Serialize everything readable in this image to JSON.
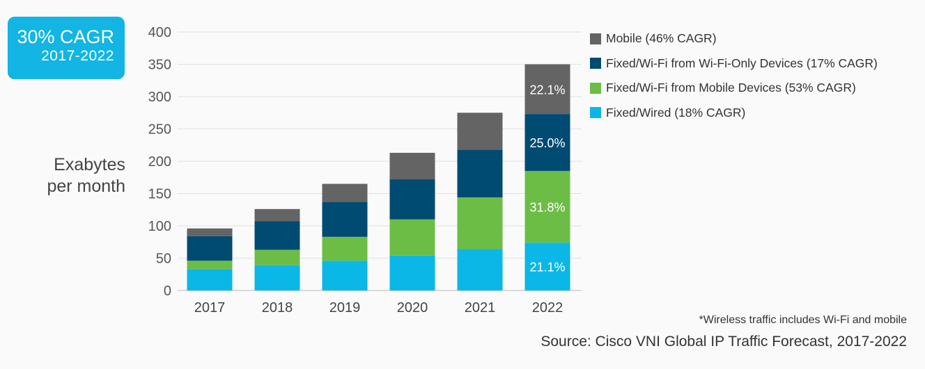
{
  "badge": {
    "cagr": "30% CAGR",
    "period": "2017-2022"
  },
  "ylabel_lines": [
    "Exabytes",
    "per month"
  ],
  "footnote": "*Wireless traffic includes Wi-Fi and mobile",
  "source": "Source: Cisco VNI Global IP Traffic Forecast, 2017-2022",
  "chart_data": {
    "type": "bar",
    "stacked": true,
    "categories": [
      "2017",
      "2018",
      "2019",
      "2020",
      "2021",
      "2022"
    ],
    "ylabel": "Exabytes per month",
    "ylim": [
      0,
      400
    ],
    "yticks": [
      0,
      50,
      100,
      150,
      200,
      250,
      300,
      350,
      400
    ],
    "grid": true,
    "legend_position": "top-right",
    "series": [
      {
        "name": "Fixed/Wired (18% CAGR)",
        "color": "#0bb7e6",
        "values": [
          33,
          39,
          46,
          54,
          64,
          74
        ]
      },
      {
        "name": "Fixed/Wi-Fi from Mobile Devices (53% CAGR)",
        "color": "#6cbd45",
        "values": [
          13,
          24,
          37,
          56,
          80,
          111
        ]
      },
      {
        "name": "Fixed/Wi-Fi from Wi-Fi-Only Devices (17% CAGR)",
        "color": "#004b72",
        "values": [
          38,
          44,
          54,
          62,
          74,
          88
        ]
      },
      {
        "name": "Mobile (46% CAGR)",
        "color": "#646464",
        "values": [
          12,
          19,
          28,
          41,
          57,
          77
        ]
      }
    ],
    "legend_order": [
      3,
      2,
      1,
      0
    ],
    "annotations": [
      {
        "category": "2022",
        "series": 0,
        "text": "21.1%"
      },
      {
        "category": "2022",
        "series": 1,
        "text": "31.8%"
      },
      {
        "category": "2022",
        "series": 2,
        "text": "25.0%"
      },
      {
        "category": "2022",
        "series": 3,
        "text": "22.1%"
      }
    ]
  }
}
